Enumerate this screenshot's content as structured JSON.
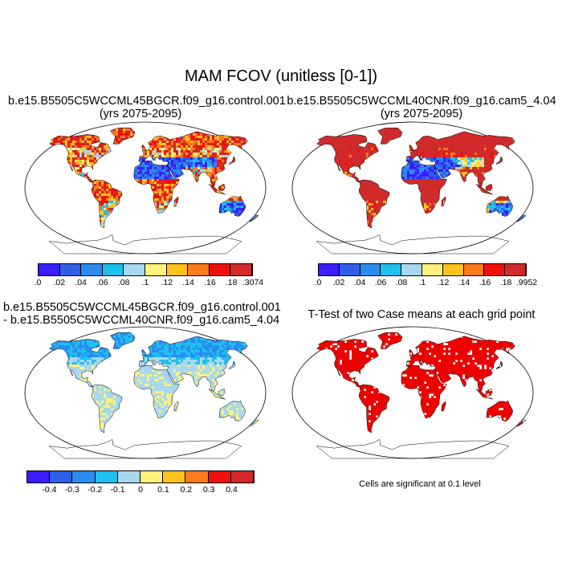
{
  "figure": {
    "title": "MAM FCOV (unitless [0-1])"
  },
  "panels": [
    {
      "id": "case1",
      "title_line1": "b.e15.B5505C5WCCML45BGCR.f09_g16.control.001",
      "title_line2": "(yrs 2075-2095)",
      "field": "absolute"
    },
    {
      "id": "case2",
      "title_line1": "b.e15.B5505C5WCCML40CNR.f09_g16.cam5_4.04",
      "title_line2": "(yrs 2075-2095)",
      "field": "absolute-high"
    },
    {
      "id": "diff",
      "title_line1": "b.e15.B5505C5WCCML45BGCR.f09_g16.control.001",
      "title_line2": "- b.e15.B5505C5WCCML40CNR.f09_g16.cam5_4.04",
      "field": "difference"
    },
    {
      "id": "ttest",
      "title_line1": "T-Test of two Case means at each grid point",
      "title_line2": "",
      "field": "significance",
      "note": "Cells are significant at 0.1 level"
    }
  ],
  "colorbars": {
    "case1": {
      "colors": [
        "#3b1cff",
        "#2f5ee8",
        "#2a8cf0",
        "#1ec0f0",
        "#a8d8ee",
        "#fff27a",
        "#ffc21a",
        "#ff7a1a",
        "#f01010",
        "#d02a2a"
      ],
      "labels": [
        ".0",
        ".02",
        ".04",
        ".06",
        ".08",
        ".1",
        ".12",
        ".14",
        ".16",
        ".18",
        ".3074"
      ]
    },
    "case2": {
      "colors": [
        "#3b1cff",
        "#2f5ee8",
        "#2a8cf0",
        "#1ec0f0",
        "#a8d8ee",
        "#fff27a",
        "#ffc21a",
        "#ff7a1a",
        "#f01010",
        "#d02a2a"
      ],
      "labels": [
        ".0",
        ".02",
        ".04",
        ".06",
        ".08",
        ".1",
        ".12",
        ".14",
        ".16",
        ".18",
        ".9952"
      ]
    },
    "diff": {
      "colors": [
        "#3b1cff",
        "#2f5ee8",
        "#2a8cf0",
        "#1ec0f0",
        "#a8d8ee",
        "#fff27a",
        "#ffc21a",
        "#ff7a1a",
        "#f01010",
        "#d02a2a"
      ],
      "labels": [
        "",
        "-0.4",
        "-0.3",
        "-0.2",
        "-0.1",
        "0",
        "0.1",
        "0.2",
        "0.3",
        "0.4",
        ""
      ]
    }
  },
  "colors": {
    "significant": "#ee0000",
    "ocean": "#ffffff",
    "coast": "#000000"
  }
}
